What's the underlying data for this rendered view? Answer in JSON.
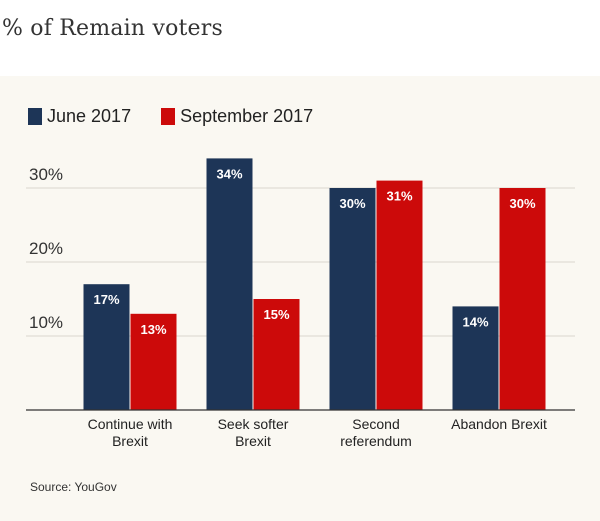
{
  "title": "% of Remain voters",
  "source": "Source: YouGov",
  "colors": {
    "june": "#1d3557",
    "september": "#cc0a0a",
    "gridline": "#d9d6cf",
    "axis": "#333333",
    "panel_background": "#faf8f2"
  },
  "chart_data": {
    "type": "bar",
    "title": "% of Remain voters",
    "xlabel": "",
    "ylabel": "",
    "ylim": [
      0,
      40
    ],
    "yticks": [
      10,
      20,
      30
    ],
    "ytick_labels": [
      "10%",
      "20%",
      "30%"
    ],
    "grid": true,
    "legend_position": "top-left",
    "categories": [
      [
        "Continue with",
        "Brexit"
      ],
      [
        "Seek softer",
        "Brexit"
      ],
      [
        "Second",
        "referendum"
      ],
      [
        "Abandon Brexit"
      ]
    ],
    "series": [
      {
        "name": "June 2017",
        "color": "#1d3557",
        "values": [
          17,
          34,
          30,
          14
        ],
        "labels": [
          "17%",
          "34%",
          "30%",
          "14%"
        ]
      },
      {
        "name": "September 2017",
        "color": "#cc0a0a",
        "values": [
          13,
          15,
          31,
          30
        ],
        "labels": [
          "13%",
          "15%",
          "31%",
          "30%"
        ]
      }
    ]
  }
}
